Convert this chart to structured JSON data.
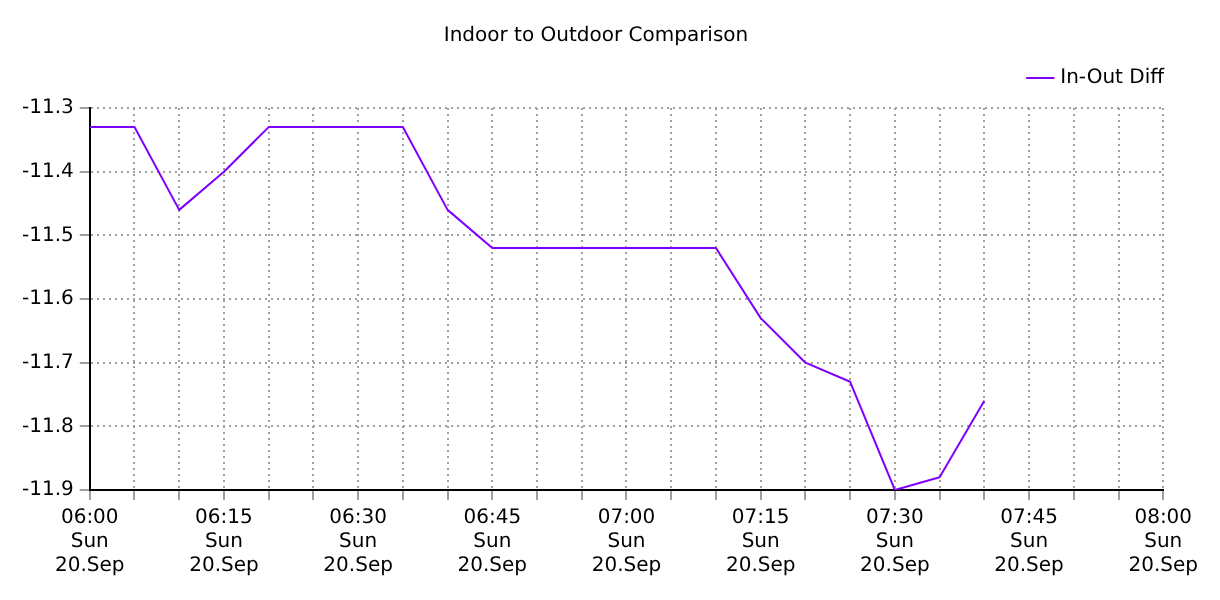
{
  "chart_data": {
    "type": "line",
    "title": "Indoor to Outdoor Comparison",
    "categories": [
      "06:00\nSun\n20.Sep",
      null,
      null,
      "06:15\nSun\n20.Sep",
      null,
      null,
      "06:30\nSun\n20.Sep",
      null,
      null,
      "06:45\nSun\n20.Sep",
      null,
      null,
      "07:00\nSun\n20.Sep",
      null,
      null,
      "07:15\nSun\n20.Sep",
      null,
      null,
      "07:30\nSun\n20.Sep",
      null,
      null,
      "07:45\nSun\n20.Sep",
      null,
      null,
      "08:00\nSun\n20.Sep"
    ],
    "series": [
      {
        "name": "In-Out Diff",
        "color": "#8000ff",
        "values": [
          -11.33,
          -11.33,
          -11.46,
          -11.4,
          -11.33,
          -11.33,
          -11.33,
          -11.33,
          -11.46,
          -11.52,
          -11.52,
          -11.52,
          -11.52,
          -11.52,
          -11.52,
          -11.63,
          -11.7,
          -11.73,
          -11.9,
          -11.88,
          -11.76,
          null,
          null,
          null,
          null
        ]
      }
    ],
    "ylim": [
      -11.9,
      -11.3
    ],
    "yticks": [
      -11.3,
      -11.4,
      -11.5,
      -11.6,
      -11.7,
      -11.8,
      -11.9
    ],
    "grid": true,
    "legend": "top right",
    "marker": "none",
    "line_style": "solid"
  }
}
